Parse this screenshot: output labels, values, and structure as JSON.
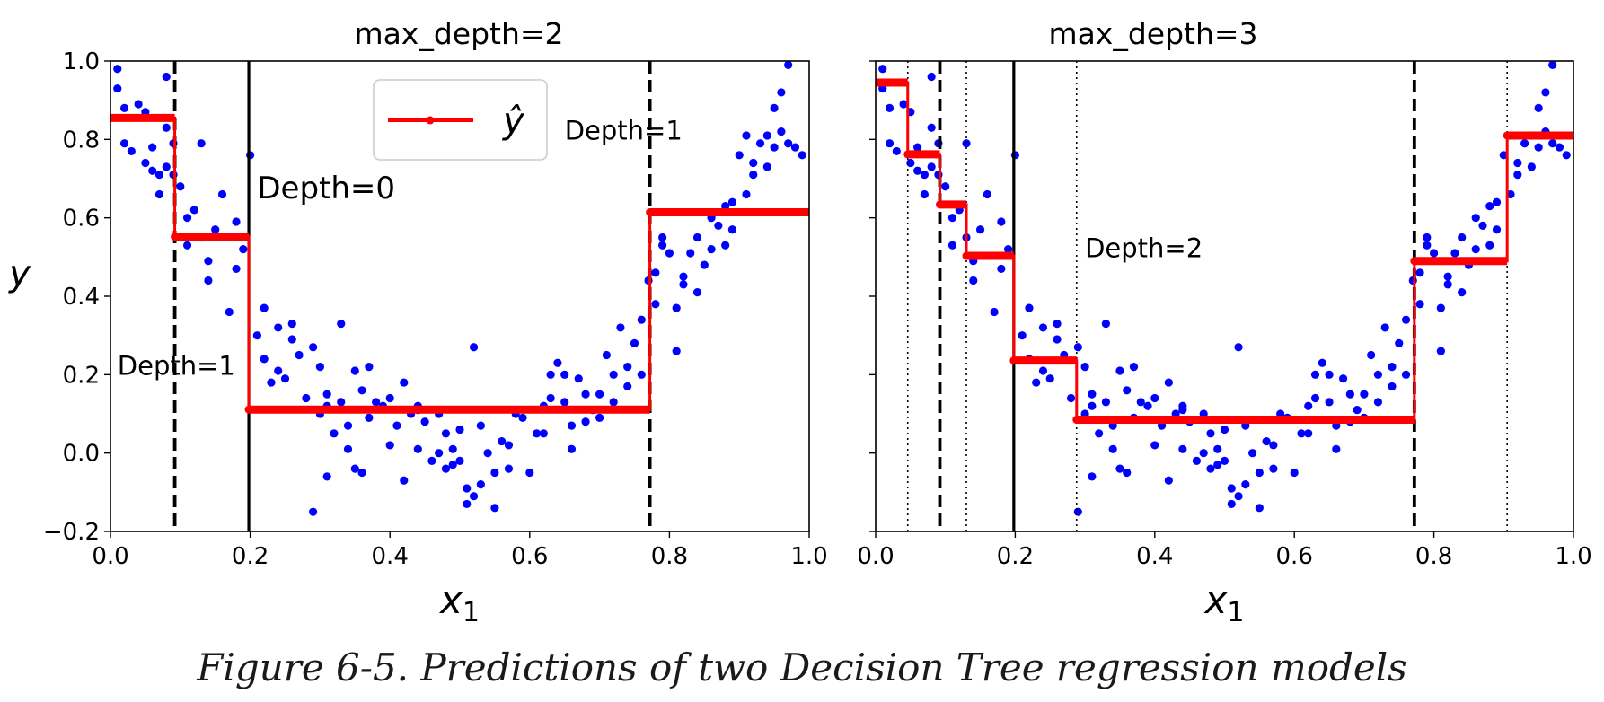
{
  "caption": "Figure 6-5. Predictions of two Decision Tree regression models",
  "colors": {
    "points": "#0000ff",
    "prediction": "#ff0000",
    "lines": "#000000"
  },
  "chart_data": [
    {
      "type": "scatter",
      "title": "max_depth=2",
      "xlabel_var": "x",
      "xlabel_sub": "1",
      "ylabel": "y",
      "xlim": [
        0.0,
        1.0
      ],
      "ylim": [
        -0.2,
        1.0
      ],
      "xticks": [
        "0.0",
        "0.2",
        "0.4",
        "0.6",
        "0.8",
        "1.0"
      ],
      "yticks": [
        "−0.2",
        "0.0",
        "0.2",
        "0.4",
        "0.6",
        "0.8",
        "1.0"
      ],
      "legend": {
        "label": "ŷ",
        "position": "upper-center"
      },
      "points": [
        [
          0.01,
          0.98
        ],
        [
          0.01,
          0.93
        ],
        [
          0.02,
          0.88
        ],
        [
          0.03,
          0.77
        ],
        [
          0.04,
          0.89
        ],
        [
          0.05,
          0.87
        ],
        [
          0.05,
          0.74
        ],
        [
          0.06,
          0.72
        ],
        [
          0.07,
          0.66
        ],
        [
          0.07,
          0.71
        ],
        [
          0.08,
          0.73
        ],
        [
          0.08,
          0.83
        ],
        [
          0.09,
          0.79
        ],
        [
          0.08,
          0.96
        ],
        [
          0.09,
          0.71
        ],
        [
          0.1,
          0.68
        ],
        [
          0.11,
          0.6
        ],
        [
          0.12,
          0.62
        ],
        [
          0.13,
          0.55
        ],
        [
          0.14,
          0.49
        ],
        [
          0.15,
          0.57
        ],
        [
          0.16,
          0.66
        ],
        [
          0.17,
          0.36
        ],
        [
          0.18,
          0.47
        ],
        [
          0.19,
          0.52
        ],
        [
          0.2,
          0.76
        ],
        [
          0.21,
          0.3
        ],
        [
          0.22,
          0.37
        ],
        [
          0.23,
          0.18
        ],
        [
          0.24,
          0.32
        ],
        [
          0.25,
          0.19
        ],
        [
          0.26,
          0.33
        ],
        [
          0.27,
          0.25
        ],
        [
          0.28,
          0.14
        ],
        [
          0.29,
          0.27
        ],
        [
          0.3,
          0.1
        ],
        [
          0.31,
          0.12
        ],
        [
          0.32,
          0.05
        ],
        [
          0.33,
          0.33
        ],
        [
          0.34,
          0.07
        ],
        [
          0.35,
          -0.04
        ],
        [
          0.36,
          0.16
        ],
        [
          0.37,
          0.09
        ],
        [
          0.38,
          0.13
        ],
        [
          0.4,
          0.14
        ],
        [
          0.41,
          0.07
        ],
        [
          0.42,
          0.18
        ],
        [
          0.43,
          0.1
        ],
        [
          0.44,
          0.11
        ],
        [
          0.45,
          0.08
        ],
        [
          0.46,
          -0.02
        ],
        [
          0.47,
          0.0
        ],
        [
          0.48,
          0.05
        ],
        [
          0.49,
          -0.03
        ],
        [
          0.5,
          0.06
        ],
        [
          0.51,
          -0.13
        ],
        [
          0.52,
          0.27
        ],
        [
          0.53,
          -0.08
        ],
        [
          0.54,
          0.0
        ],
        [
          0.55,
          -0.05
        ],
        [
          0.56,
          0.03
        ],
        [
          0.58,
          0.1
        ],
        [
          0.6,
          -0.05
        ],
        [
          0.61,
          0.05
        ],
        [
          0.62,
          0.12
        ],
        [
          0.63,
          0.2
        ],
        [
          0.64,
          0.23
        ],
        [
          0.65,
          0.13
        ],
        [
          0.66,
          0.07
        ],
        [
          0.67,
          0.19
        ],
        [
          0.68,
          0.15
        ],
        [
          0.69,
          0.11
        ],
        [
          0.7,
          0.15
        ],
        [
          0.71,
          0.25
        ],
        [
          0.72,
          0.2
        ],
        [
          0.73,
          0.32
        ],
        [
          0.74,
          0.17
        ],
        [
          0.75,
          0.28
        ],
        [
          0.76,
          0.34
        ],
        [
          0.77,
          0.44
        ],
        [
          0.78,
          0.46
        ],
        [
          0.79,
          0.55
        ],
        [
          0.8,
          0.51
        ],
        [
          0.81,
          0.37
        ],
        [
          0.82,
          0.45
        ],
        [
          0.83,
          0.51
        ],
        [
          0.84,
          0.55
        ],
        [
          0.85,
          0.48
        ],
        [
          0.86,
          0.6
        ],
        [
          0.87,
          0.58
        ],
        [
          0.88,
          0.63
        ],
        [
          0.89,
          0.57
        ],
        [
          0.9,
          0.76
        ],
        [
          0.91,
          0.81
        ],
        [
          0.92,
          0.71
        ],
        [
          0.93,
          0.79
        ],
        [
          0.94,
          0.81
        ],
        [
          0.95,
          0.88
        ],
        [
          0.96,
          0.82
        ],
        [
          0.97,
          0.99
        ],
        [
          0.98,
          0.78
        ],
        [
          0.99,
          0.76
        ],
        [
          0.02,
          0.79
        ],
        [
          0.06,
          0.78
        ],
        [
          0.11,
          0.53
        ],
        [
          0.13,
          0.79
        ],
        [
          0.14,
          0.44
        ],
        [
          0.18,
          0.59
        ],
        [
          0.22,
          0.24
        ],
        [
          0.24,
          0.21
        ],
        [
          0.26,
          0.29
        ],
        [
          0.3,
          0.22
        ],
        [
          0.31,
          0.15
        ],
        [
          0.33,
          0.13
        ],
        [
          0.34,
          0.01
        ],
        [
          0.35,
          0.21
        ],
        [
          0.36,
          -0.05
        ],
        [
          0.37,
          0.22
        ],
        [
          0.39,
          0.12
        ],
        [
          0.4,
          0.02
        ],
        [
          0.42,
          -0.07
        ],
        [
          0.44,
          0.01
        ],
        [
          0.47,
          0.1
        ],
        [
          0.48,
          -0.04
        ],
        [
          0.5,
          -0.02
        ],
        [
          0.52,
          -0.11
        ],
        [
          0.53,
          0.07
        ],
        [
          0.55,
          -0.14
        ],
        [
          0.57,
          -0.04
        ],
        [
          0.59,
          0.09
        ],
        [
          0.62,
          0.05
        ],
        [
          0.63,
          0.14
        ],
        [
          0.65,
          0.2
        ],
        [
          0.66,
          0.01
        ],
        [
          0.68,
          0.08
        ],
        [
          0.7,
          0.09
        ],
        [
          0.72,
          0.13
        ],
        [
          0.74,
          0.22
        ],
        [
          0.76,
          0.2
        ],
        [
          0.78,
          0.38
        ],
        [
          0.79,
          0.53
        ],
        [
          0.81,
          0.26
        ],
        [
          0.82,
          0.43
        ],
        [
          0.84,
          0.41
        ],
        [
          0.86,
          0.52
        ],
        [
          0.88,
          0.53
        ],
        [
          0.89,
          0.64
        ],
        [
          0.91,
          0.66
        ],
        [
          0.92,
          0.74
        ],
        [
          0.94,
          0.73
        ],
        [
          0.95,
          0.78
        ],
        [
          0.96,
          0.92
        ],
        [
          0.97,
          0.79
        ],
        [
          0.31,
          -0.06
        ],
        [
          0.29,
          -0.15
        ],
        [
          0.49,
          0.01
        ],
        [
          0.51,
          -0.09
        ],
        [
          0.57,
          0.02
        ],
        [
          0.44,
          0.12
        ]
      ],
      "prediction_steps": [
        {
          "x0": 0.0,
          "x1": 0.092,
          "y": 0.855
        },
        {
          "x0": 0.092,
          "x1": 0.198,
          "y": 0.552
        },
        {
          "x0": 0.198,
          "x1": 0.772,
          "y": 0.111
        },
        {
          "x0": 0.772,
          "x1": 1.0,
          "y": 0.614
        }
      ],
      "splits": [
        {
          "x": 0.198,
          "style": "solid",
          "depth": 0
        },
        {
          "x": 0.092,
          "style": "dashed",
          "depth": 1
        },
        {
          "x": 0.772,
          "style": "dashed",
          "depth": 1
        }
      ],
      "annotations": [
        {
          "text": "Depth=0",
          "x": 0.21,
          "y": 0.65,
          "size": "large"
        },
        {
          "text": "Depth=1",
          "x": 0.01,
          "y": 0.2,
          "size": "medium"
        },
        {
          "text": "Depth=1",
          "x": 0.65,
          "y": 0.8,
          "size": "medium"
        }
      ]
    },
    {
      "type": "scatter",
      "title": "max_depth=3",
      "xlabel_var": "x",
      "xlabel_sub": "1",
      "ylabel": "",
      "xlim": [
        0.0,
        1.0
      ],
      "ylim": [
        -0.2,
        1.0
      ],
      "xticks": [
        "0.0",
        "0.2",
        "0.4",
        "0.6",
        "0.8",
        "1.0"
      ],
      "yticks": [],
      "points_same_as_first": true,
      "prediction_steps": [
        {
          "x0": 0.0,
          "x1": 0.046,
          "y": 0.945
        },
        {
          "x0": 0.046,
          "x1": 0.092,
          "y": 0.762
        },
        {
          "x0": 0.092,
          "x1": 0.13,
          "y": 0.634
        },
        {
          "x0": 0.13,
          "x1": 0.198,
          "y": 0.503
        },
        {
          "x0": 0.198,
          "x1": 0.288,
          "y": 0.236
        },
        {
          "x0": 0.288,
          "x1": 0.772,
          "y": 0.085
        },
        {
          "x0": 0.772,
          "x1": 0.905,
          "y": 0.49
        },
        {
          "x0": 0.905,
          "x1": 1.0,
          "y": 0.81
        }
      ],
      "splits": [
        {
          "x": 0.198,
          "style": "solid",
          "depth": 0
        },
        {
          "x": 0.092,
          "style": "dashed",
          "depth": 1
        },
        {
          "x": 0.772,
          "style": "dashed",
          "depth": 1
        },
        {
          "x": 0.046,
          "style": "dotted",
          "depth": 2
        },
        {
          "x": 0.13,
          "style": "dotted",
          "depth": 2
        },
        {
          "x": 0.288,
          "style": "dotted",
          "depth": 2
        },
        {
          "x": 0.905,
          "style": "dotted",
          "depth": 2
        }
      ],
      "annotations": [
        {
          "text": "Depth=2",
          "x": 0.3,
          "y": 0.5,
          "size": "medium"
        }
      ]
    }
  ]
}
